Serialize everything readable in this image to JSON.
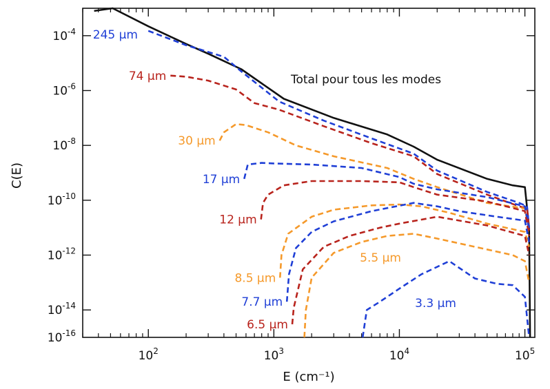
{
  "chart_data": {
    "type": "line",
    "xlabel": "E (cm⁻¹)",
    "ylabel": "C(E)",
    "xscale": "log",
    "yscale": "log",
    "xlim": [
      30,
      120000
    ],
    "ylim": [
      1e-15,
      0.001
    ],
    "x_ticks": [
      {
        "value": 100,
        "base": "10",
        "exp": "2"
      },
      {
        "value": 1000,
        "base": "10",
        "exp": "3"
      },
      {
        "value": 10000,
        "base": "10",
        "exp": "4"
      },
      {
        "value": 100000,
        "base": "10",
        "exp": "5"
      }
    ],
    "y_ticks": [
      {
        "value": 0.0001,
        "base": "10",
        "exp": "-4"
      },
      {
        "value": 1e-06,
        "base": "10",
        "exp": "-6"
      },
      {
        "value": 1e-08,
        "base": "10",
        "exp": "-8"
      },
      {
        "value": 1e-10,
        "base": "10",
        "exp": "-10"
      },
      {
        "value": 1e-12,
        "base": "10",
        "exp": "-12"
      },
      {
        "value": 1e-14,
        "base": "10",
        "exp": "-14"
      },
      {
        "value": 1e-16,
        "base": "10",
        "exp": "-16"
      }
    ],
    "annotation": "Total pour tous les modes",
    "series": [
      {
        "name": "Total",
        "color": "#111111",
        "dashed": false,
        "x": [
          37,
          52,
          100,
          200,
          300,
          550,
          1200,
          3000,
          8000,
          13000,
          20000,
          50000,
          80000,
          100000,
          108000,
          110000
        ],
        "y": [
          0.0008,
          0.0011,
          0.00022,
          5e-05,
          2.2e-05,
          6e-06,
          5e-07,
          1e-07,
          2.5e-08,
          9e-09,
          3e-09,
          6e-10,
          3.5e-10,
          3e-10,
          1e-11,
          1e-15
        ]
      },
      {
        "name": "245 µm",
        "color": "#1f3fd6",
        "dashed": true,
        "x": [
          100,
          200,
          400,
          550,
          1100,
          2500,
          6000,
          13000,
          20000,
          50000,
          90000,
          104000,
          108000
        ],
        "y": [
          0.00015,
          4.5e-05,
          1.7e-05,
          5e-06,
          4e-07,
          8e-08,
          1.8e-08,
          5e-09,
          1.2e-09,
          2e-10,
          8e-11,
          6e-11,
          1e-11
        ]
      },
      {
        "name": "74 µm",
        "color": "#b8231c",
        "dashed": true,
        "x": [
          150,
          200,
          300,
          500,
          700,
          1100,
          2500,
          6000,
          13000,
          20000,
          50000,
          90000,
          104000,
          108000
        ],
        "y": [
          3.5e-06,
          3.2e-06,
          2.3e-06,
          1.1e-06,
          3.5e-07,
          2e-07,
          5e-08,
          1.2e-08,
          4e-09,
          9e-10,
          1.6e-10,
          6e-11,
          5e-11,
          8e-12
        ]
      },
      {
        "name": "30 µm",
        "color": "#f5992a",
        "dashed": true,
        "x": [
          370,
          400,
          500,
          600,
          900,
          1500,
          3000,
          8000,
          13000,
          20000,
          50000,
          100000,
          108000
        ],
        "y": [
          1.5e-08,
          3e-08,
          6e-08,
          5.5e-08,
          3e-08,
          1e-08,
          4e-09,
          1.5e-09,
          6e-10,
          3e-10,
          8e-11,
          5e-11,
          8e-12
        ]
      },
      {
        "name": "17 µm",
        "color": "#1f3fd6",
        "dashed": true,
        "x": [
          580,
          620,
          800,
          1000,
          2000,
          5000,
          10000,
          13000,
          20000,
          50000,
          100000,
          108000
        ],
        "y": [
          6e-10,
          2e-09,
          2.3e-09,
          2.2e-09,
          2e-09,
          1.5e-09,
          7e-10,
          4e-10,
          2.5e-10,
          1.3e-10,
          6e-11,
          8e-12
        ]
      },
      {
        "name": "12 µm",
        "color": "#b8231c",
        "dashed": true,
        "x": [
          790,
          820,
          900,
          1200,
          2000,
          5000,
          10000,
          13000,
          20000,
          50000,
          100000,
          108000
        ],
        "y": [
          2e-11,
          8e-11,
          1.6e-10,
          3.5e-10,
          5e-10,
          5e-10,
          4.5e-10,
          3e-10,
          1.6e-10,
          9e-11,
          4e-11,
          5e-12
        ]
      },
      {
        "name": "8.5 µm",
        "color": "#f5992a",
        "dashed": true,
        "x": [
          1120,
          1150,
          1300,
          2000,
          3000,
          6000,
          10000,
          15000,
          25000,
          50000,
          100000,
          108000
        ],
        "y": [
          1.5e-13,
          1e-12,
          6e-12,
          2.5e-11,
          4.5e-11,
          6.5e-11,
          7e-11,
          6e-11,
          3.5e-11,
          1.4e-11,
          7e-12,
          2e-12
        ]
      },
      {
        "name": "7.7 µm",
        "color": "#1f3fd6",
        "dashed": true,
        "x": [
          1270,
          1320,
          1500,
          2000,
          3000,
          6000,
          13000,
          20000,
          30000,
          60000,
          100000,
          108000
        ],
        "y": [
          2e-14,
          2e-13,
          1.8e-12,
          7e-12,
          1.7e-11,
          4e-11,
          8e-11,
          6e-11,
          4e-11,
          2.5e-11,
          1.8e-11,
          3e-12
        ]
      },
      {
        "name": "6.5 µm",
        "color": "#b8231c",
        "dashed": true,
        "x": [
          1400,
          1440,
          1700,
          2500,
          4000,
          7000,
          10000,
          20000,
          50000,
          100000,
          108000
        ],
        "y": [
          3e-15,
          1.2e-14,
          3e-13,
          2e-12,
          5e-12,
          1e-11,
          1.4e-11,
          2.5e-11,
          1.2e-11,
          5e-12,
          1e-12
        ]
      },
      {
        "name": "5.5 µm",
        "color": "#f5992a",
        "dashed": true,
        "x": [
          1750,
          1800,
          2000,
          3000,
          5000,
          8000,
          13000,
          20000,
          40000,
          80000,
          100000,
          108000
        ],
        "y": [
          1e-15,
          1e-14,
          1.5e-13,
          1.2e-12,
          3e-12,
          5e-12,
          6e-12,
          4e-12,
          2e-12,
          1e-12,
          6e-13,
          1e-13
        ]
      },
      {
        "name": "3.3 µm",
        "color": "#1f3fd6",
        "dashed": true,
        "x": [
          5100,
          5500,
          7000,
          10000,
          15000,
          25000,
          40000,
          60000,
          80000,
          100000,
          108000
        ],
        "y": [
          1e-15,
          1e-14,
          2e-14,
          6e-14,
          2e-13,
          6e-13,
          1.4e-13,
          9e-14,
          8e-14,
          3e-14,
          1e-15
        ]
      }
    ]
  }
}
